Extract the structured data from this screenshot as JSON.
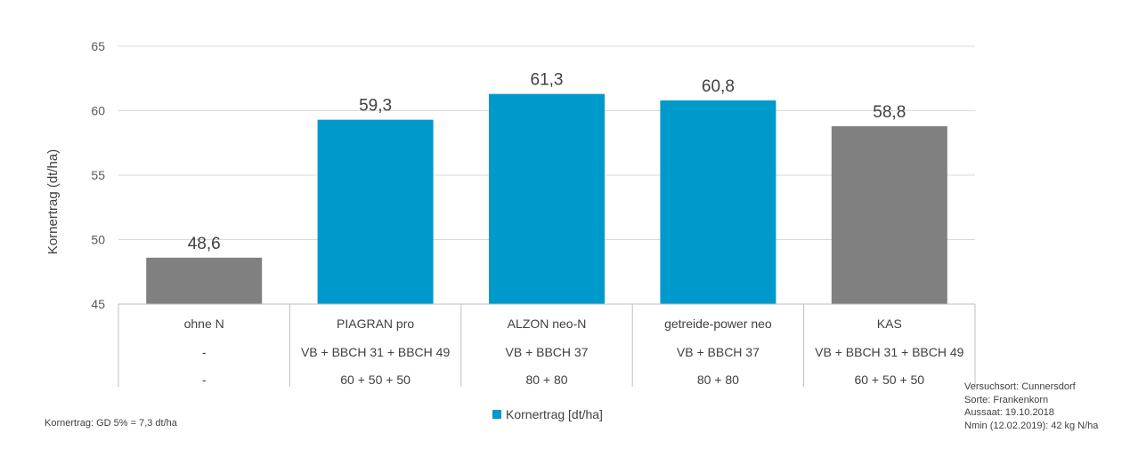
{
  "chart_data": {
    "type": "bar",
    "categories": [
      "ohne N",
      "PIAGRAN pro",
      "ALZON neo-N",
      "getreide-power neo",
      "KAS"
    ],
    "values": [
      48.6,
      59.3,
      61.3,
      60.8,
      58.8
    ],
    "value_labels": [
      "48,6",
      "59,3",
      "61,3",
      "60,8",
      "58,8"
    ],
    "bar_colors": [
      "#808080",
      "#0099CC",
      "#0099CC",
      "#0099CC",
      "#808080"
    ],
    "ylabel": "Kornertrag (dt/ha)",
    "ylim": [
      45,
      65
    ],
    "yticks": [
      45,
      50,
      55,
      60,
      65
    ],
    "grid": true,
    "legend": {
      "label": "Kornertrag [dt/ha]",
      "position": "bottom",
      "color": "#0099CC"
    },
    "table_rows": [
      [
        "-",
        "VB + BBCH 31 + BBCH 49",
        "VB + BBCH 37",
        "VB + BBCH 37",
        "VB + BBCH 31 + BBCH 49"
      ],
      [
        "-",
        "60 + 50 + 50",
        "80 + 80",
        "80 + 80",
        "60 + 50 + 50"
      ]
    ]
  },
  "notes": {
    "gd": "Kornertrag: GD 5% = 7,3 dt/ha",
    "trial": [
      "Versuchsort: Cunnersdorf",
      "Sorte: Frankenkorn",
      "Aussaat: 19.10.2018",
      "Nmin (12.02.2019): 42 kg N/ha"
    ]
  }
}
